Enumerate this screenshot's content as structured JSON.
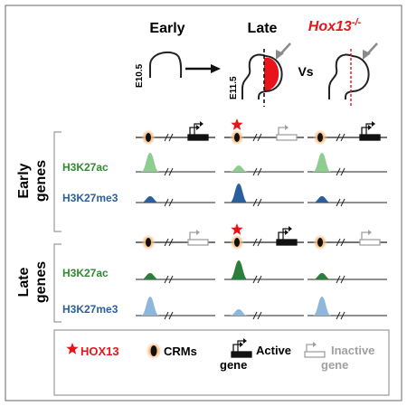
{
  "header": {
    "early": "Early",
    "late": "Late",
    "hox_prefix": "Hox13",
    "hox_super": "-/-",
    "stage_early": "E10.5",
    "stage_late": "E11.5",
    "vs": "Vs"
  },
  "rows": {
    "early_group": "Early",
    "early_group2": "genes",
    "late_group": "Late",
    "late_group2": "genes",
    "mark_ac": "H3K27ac",
    "mark_me3": "H3K27me3"
  },
  "legend": {
    "hox13": "HOX13",
    "crms": "CRMs",
    "active_line1": "Active",
    "active_line2": "gene",
    "inactive_line1": "Inactive",
    "inactive_line2": "gene"
  },
  "colors": {
    "red": "#e8141b",
    "ac_light": "#8fcc8f",
    "ac_dark": "#2f7d3a",
    "me3_light": "#8db8dc",
    "me3_dark": "#2a5f9e",
    "ac_label": "#2e8b2e",
    "me3_label": "#2a5f9e",
    "inactive": "#a0a0a0",
    "frame": "#7f7f7f"
  },
  "peaks": {
    "early_ac": [
      "high-light",
      "low-light",
      "high-light"
    ],
    "early_me3": [
      "low-dark",
      "high-dark",
      "low-dark"
    ],
    "late_ac": [
      "low-dark",
      "high-dark",
      "low-dark"
    ],
    "late_me3": [
      "high-light",
      "low-light",
      "high-light"
    ]
  }
}
